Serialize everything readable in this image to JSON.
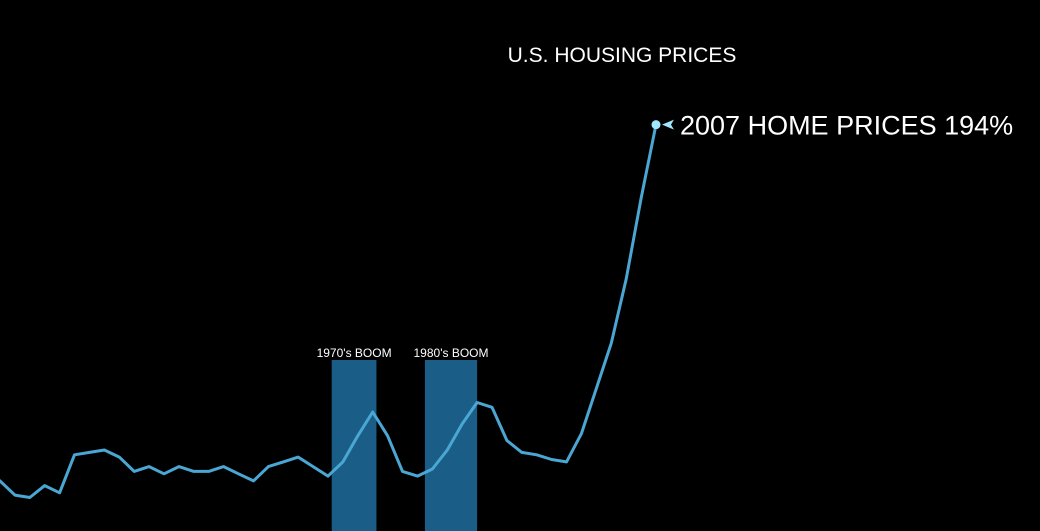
{
  "chart_data": {
    "type": "line",
    "title": "U.S. HOUSING PRICES",
    "line_color": "#4aa6d3",
    "band_color": "#1f6f9f",
    "marker_color": "#9fe6ff",
    "grid": false,
    "legend": "none",
    "bands": [
      {
        "label": "1970's BOOM"
      },
      {
        "label": "1980's BOOM"
      }
    ],
    "series": [
      {
        "values": [
          44,
          38,
          37,
          42,
          39,
          55,
          56,
          57,
          54,
          48,
          50,
          47,
          50,
          48,
          48,
          50,
          47,
          44,
          50,
          52,
          54,
          50,
          46,
          52,
          63,
          73,
          63,
          48,
          46,
          49,
          57,
          68,
          77,
          75,
          61,
          56,
          55,
          53,
          52,
          64,
          83,
          102,
          129,
          163,
          194
        ]
      }
    ],
    "annotation": {
      "text": "2007 HOME PRICES 194%"
    }
  }
}
